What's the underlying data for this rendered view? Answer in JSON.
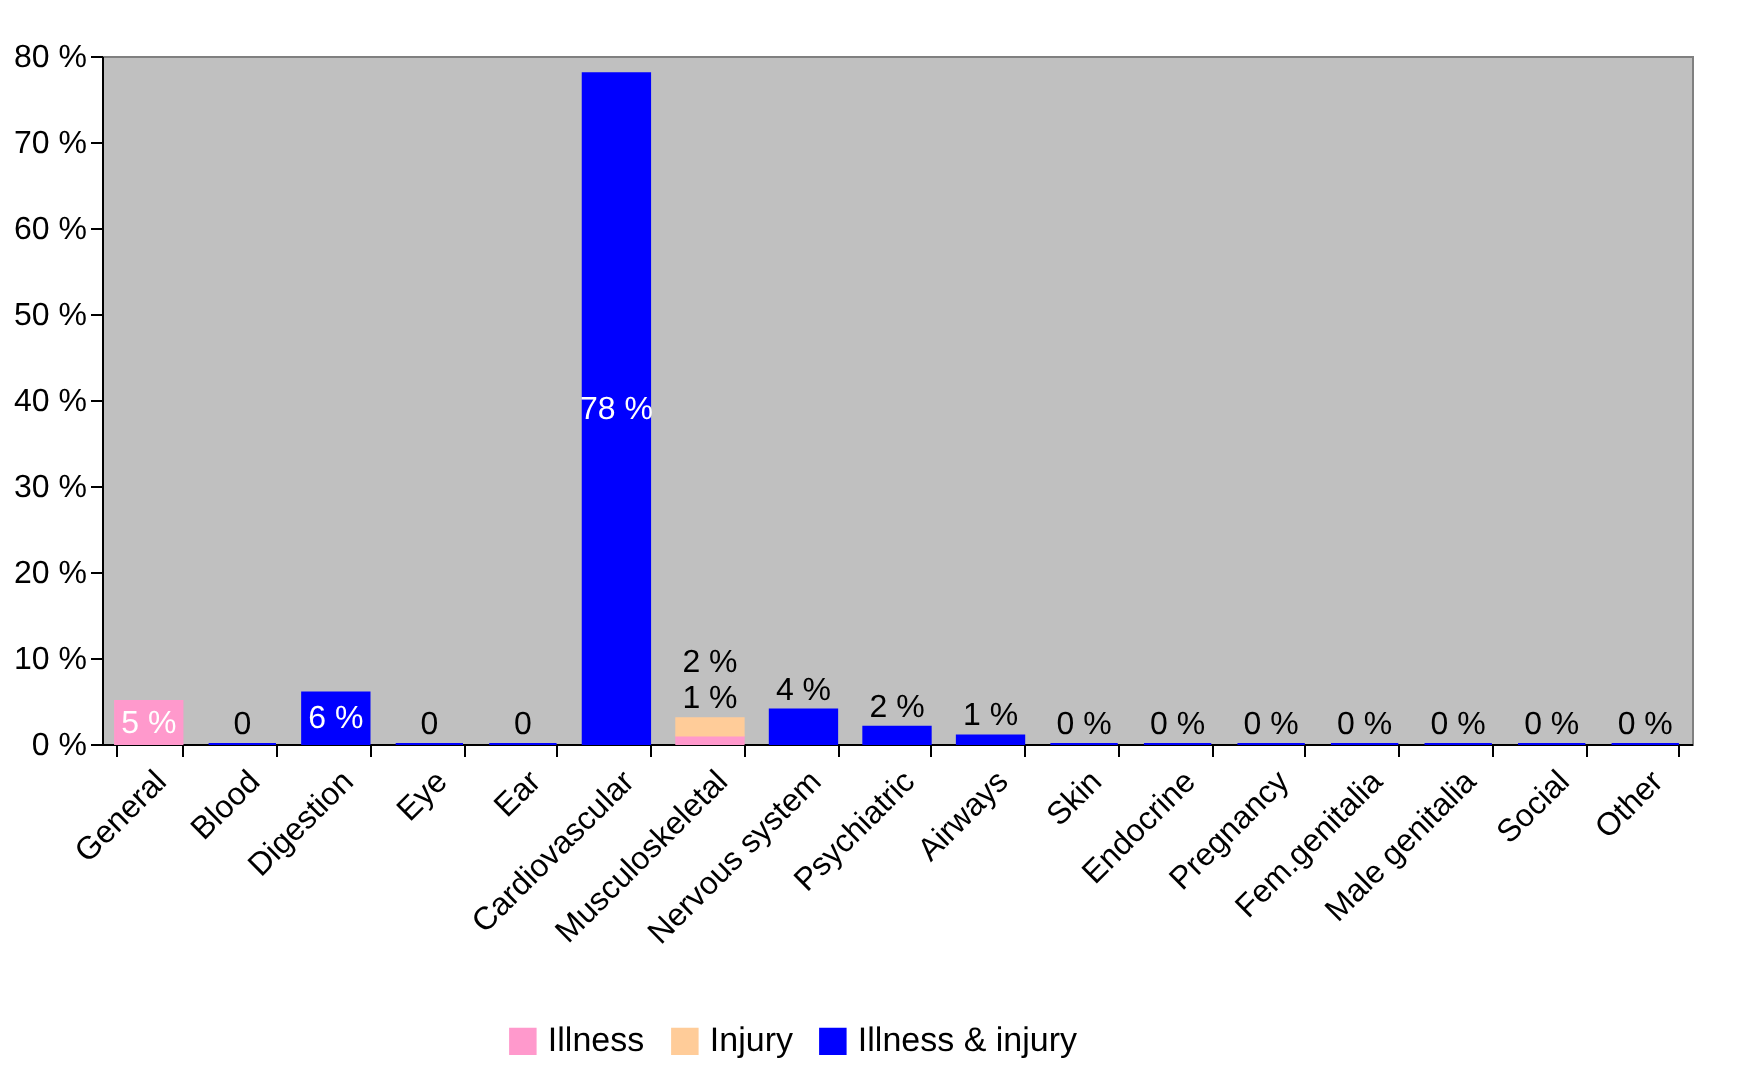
{
  "chart_data": {
    "type": "bar",
    "stacked": true,
    "categories": [
      "General",
      "Blood",
      "Digestion",
      "Eye",
      "Ear",
      "Cardiovascular",
      "Musculoskeletal",
      "Nervous system",
      "Psychiatric",
      "Airways",
      "Skin",
      "Endocrine",
      "Pregnancy",
      "Fem.genitalia",
      "Male genitalia",
      "Social",
      "Other"
    ],
    "series": [
      {
        "name": "Illness",
        "color": "#ff99cc",
        "values": [
          5,
          null,
          null,
          null,
          null,
          null,
          1,
          null,
          null,
          null,
          null,
          null,
          null,
          null,
          null,
          null,
          null
        ],
        "value_labels": [
          "5 %",
          null,
          null,
          null,
          null,
          null,
          "1 %",
          null,
          null,
          null,
          null,
          null,
          null,
          null,
          null,
          null,
          null
        ]
      },
      {
        "name": "Injury",
        "color": "#ffcc99",
        "values": [
          null,
          null,
          null,
          null,
          null,
          null,
          2,
          null,
          null,
          null,
          null,
          null,
          null,
          null,
          null,
          null,
          null
        ],
        "value_labels": [
          null,
          null,
          null,
          null,
          null,
          null,
          "2 %",
          null,
          null,
          null,
          null,
          null,
          null,
          null,
          null,
          null,
          null
        ]
      },
      {
        "name": "Illness & injury",
        "color": "#0000ff",
        "values": [
          null,
          0,
          6,
          0,
          0,
          78,
          null,
          4,
          2,
          1,
          0,
          0,
          0,
          0,
          0,
          0,
          0
        ],
        "value_labels": [
          null,
          "0",
          "6 %",
          "0",
          "0",
          "78 %",
          null,
          "4 %",
          "2 %",
          "1 %",
          "0 %",
          "0 %",
          "0 %",
          "0 %",
          "0 %",
          "0 %",
          "0 %"
        ]
      }
    ],
    "ylim": [
      0,
      80
    ],
    "yticks": [
      {
        "value": 0,
        "label": "0 %"
      },
      {
        "value": 10,
        "label": "10 %"
      },
      {
        "value": 20,
        "label": "20 %"
      },
      {
        "value": 30,
        "label": "30 %"
      },
      {
        "value": 40,
        "label": "40 %"
      },
      {
        "value": 50,
        "label": "50 %"
      },
      {
        "value": 60,
        "label": "60 %"
      },
      {
        "value": 70,
        "label": "70 %"
      },
      {
        "value": 80,
        "label": "80 %"
      }
    ],
    "legend": "bottom"
  }
}
